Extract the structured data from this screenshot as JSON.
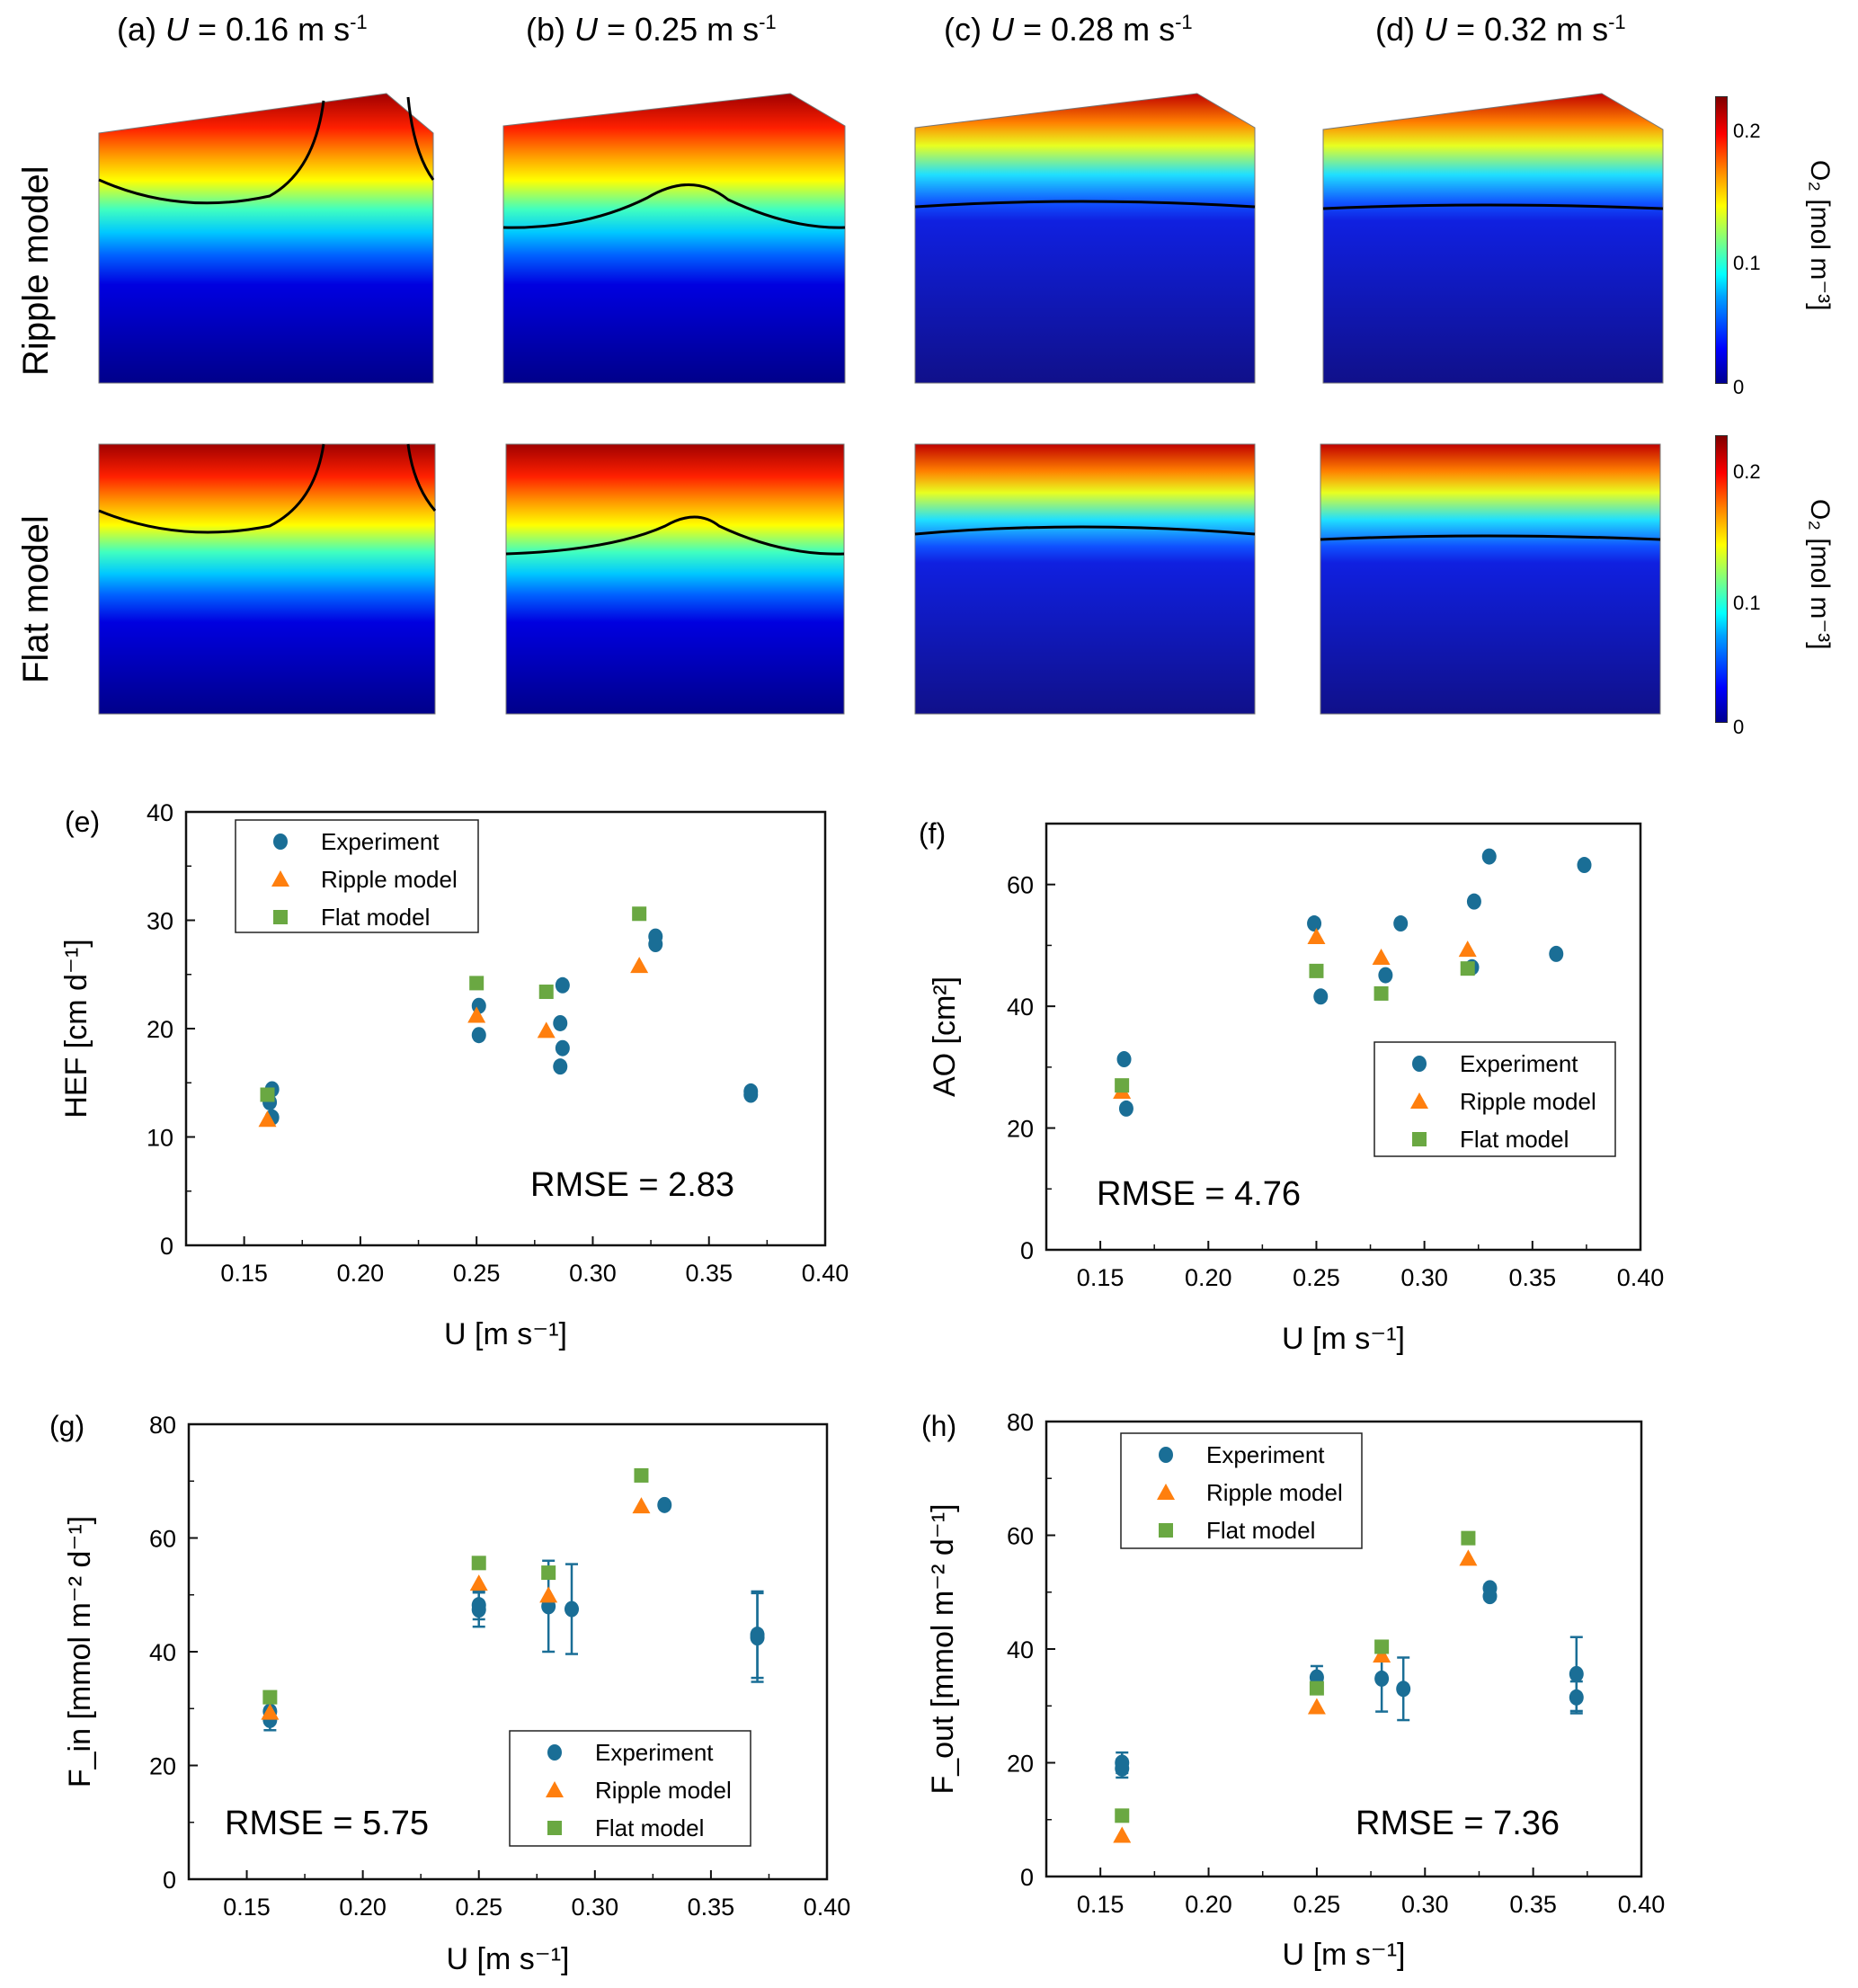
{
  "fields": {
    "column_titles": [
      {
        "prefix": "(a) ",
        "var": "U",
        "rest": " = 0.16 m s",
        "sup": "-1"
      },
      {
        "prefix": "(b) ",
        "var": "U",
        "rest": " = 0.25 m s",
        "sup": "-1"
      },
      {
        "prefix": "(c) ",
        "var": "U",
        "rest": " = 0.28 m s",
        "sup": "-1"
      },
      {
        "prefix": "(d) ",
        "var": "U",
        "rest": " = 0.32 m s",
        "sup": "-1"
      }
    ],
    "row_labels": [
      "Ripple model",
      "Flat model"
    ],
    "colorbar": {
      "label": "O₂ [mol m⁻³]",
      "ticks": [
        "0.2",
        "0.1",
        "0"
      ],
      "range": [
        0,
        0.22
      ],
      "colormap": "jet"
    }
  },
  "chart_data": [
    {
      "panel": "(e)",
      "type": "scatter",
      "xlabel": "U [m s⁻¹]",
      "ylabel": "HEF [cm d⁻¹]",
      "xlim": [
        0.125,
        0.4
      ],
      "ylim": [
        0,
        40
      ],
      "xticks": [
        "0.15",
        "0.20",
        "0.25",
        "0.30",
        "0.35",
        "0.40"
      ],
      "yticks": [
        "0",
        "10",
        "20",
        "30",
        "40"
      ],
      "annotation": "RMSE = 2.83",
      "legend_position": "top-left",
      "series": [
        {
          "name": "Experiment",
          "marker": "circle",
          "color": "#1a6e96",
          "points": [
            [
              0.162,
              14.4
            ],
            [
              0.161,
              13.2
            ],
            [
              0.162,
              11.8
            ],
            [
              0.251,
              22.1
            ],
            [
              0.251,
              19.4
            ],
            [
              0.287,
              24.0
            ],
            [
              0.286,
              20.5
            ],
            [
              0.287,
              18.2
            ],
            [
              0.286,
              16.5
            ],
            [
              0.327,
              28.5
            ],
            [
              0.327,
              27.8
            ],
            [
              0.368,
              14.2
            ],
            [
              0.368,
              13.9
            ]
          ]
        },
        {
          "name": "Ripple model",
          "marker": "triangle",
          "color": "#ff7f0e",
          "points": [
            [
              0.16,
              11.6
            ],
            [
              0.25,
              21.2
            ],
            [
              0.28,
              19.8
            ],
            [
              0.32,
              25.8
            ]
          ]
        },
        {
          "name": "Flat model",
          "marker": "square",
          "color": "#6aa842",
          "points": [
            [
              0.16,
              13.9
            ],
            [
              0.25,
              24.2
            ],
            [
              0.28,
              23.4
            ],
            [
              0.32,
              30.6
            ]
          ]
        }
      ]
    },
    {
      "panel": "(f)",
      "type": "scatter",
      "xlabel": "U [m s⁻¹]",
      "ylabel": "AO [cm²]",
      "xlim": [
        0.125,
        0.4
      ],
      "ylim": [
        0,
        70
      ],
      "xticks": [
        "0.15",
        "0.20",
        "0.25",
        "0.30",
        "0.35",
        "0.40"
      ],
      "yticks": [
        "0",
        "20",
        "40",
        "60"
      ],
      "annotation": "RMSE = 4.76",
      "legend_position": "bottom-right",
      "series": [
        {
          "name": "Experiment",
          "marker": "circle",
          "color": "#1a6e96",
          "points": [
            [
              0.161,
              31.3
            ],
            [
              0.162,
              23.2
            ],
            [
              0.249,
              53.6
            ],
            [
              0.252,
              41.6
            ],
            [
              0.282,
              45.1
            ],
            [
              0.289,
              53.6
            ],
            [
              0.322,
              46.4
            ],
            [
              0.323,
              57.2
            ],
            [
              0.33,
              64.6
            ],
            [
              0.361,
              48.6
            ],
            [
              0.374,
              63.2
            ]
          ]
        },
        {
          "name": "Ripple model",
          "marker": "triangle",
          "color": "#ff7f0e",
          "points": [
            [
              0.16,
              26.0
            ],
            [
              0.25,
              51.4
            ],
            [
              0.28,
              48.0
            ],
            [
              0.32,
              49.3
            ]
          ]
        },
        {
          "name": "Flat model",
          "marker": "square",
          "color": "#6aa842",
          "points": [
            [
              0.16,
              27.0
            ],
            [
              0.25,
              45.8
            ],
            [
              0.28,
              42.1
            ],
            [
              0.32,
              46.2
            ]
          ]
        }
      ]
    },
    {
      "panel": "(g)",
      "type": "scatter",
      "xlabel": "U [m s⁻¹]",
      "ylabel": "F_in [mmol m⁻² d⁻¹]",
      "xlim": [
        0.125,
        0.4
      ],
      "ylim": [
        0,
        80
      ],
      "xticks": [
        "0.15",
        "0.20",
        "0.25",
        "0.30",
        "0.35",
        "0.40"
      ],
      "yticks": [
        "0",
        "20",
        "40",
        "60",
        "80"
      ],
      "annotation": "RMSE = 5.75",
      "legend_position": "bottom-right",
      "series": [
        {
          "name": "Experiment",
          "marker": "circle",
          "color": "#1a6e96",
          "points": [
            [
              0.16,
              29.5
            ],
            [
              0.16,
              28.0
            ],
            [
              0.25,
              48.2
            ],
            [
              0.25,
              47.4
            ],
            [
              0.28,
              48.0
            ],
            [
              0.29,
              47.5
            ],
            [
              0.33,
              65.8
            ],
            [
              0.37,
              43.0
            ],
            [
              0.37,
              42.5
            ]
          ],
          "error": [
            [
              2.0
            ],
            [
              1.8
            ],
            [
              2.5
            ],
            [
              3.0
            ],
            [
              8.0
            ],
            [
              7.9
            ],
            [
              0.5
            ],
            [
              7.6
            ],
            [
              7.8
            ]
          ]
        },
        {
          "name": "Ripple model",
          "marker": "triangle",
          "color": "#ff7f0e",
          "points": [
            [
              0.16,
              29.3
            ],
            [
              0.25,
              52.0
            ],
            [
              0.28,
              49.9
            ],
            [
              0.32,
              65.6
            ]
          ]
        },
        {
          "name": "Flat model",
          "marker": "square",
          "color": "#6aa842",
          "points": [
            [
              0.16,
              32.0
            ],
            [
              0.25,
              55.6
            ],
            [
              0.28,
              53.9
            ],
            [
              0.32,
              71.0
            ]
          ]
        }
      ]
    },
    {
      "panel": "(h)",
      "type": "scatter",
      "xlabel": "U [m s⁻¹]",
      "ylabel": "F_out [mmol m⁻² d⁻¹]",
      "xlim": [
        0.125,
        0.4
      ],
      "ylim": [
        0,
        80
      ],
      "xticks": [
        "0.15",
        "0.20",
        "0.25",
        "0.30",
        "0.35",
        "0.40"
      ],
      "yticks": [
        "0",
        "20",
        "40",
        "60",
        "80"
      ],
      "annotation": "RMSE = 7.36",
      "legend_position": "top-left",
      "series": [
        {
          "name": "Experiment",
          "marker": "circle",
          "color": "#1a6e96",
          "points": [
            [
              0.16,
              20.0
            ],
            [
              0.16,
              19.0
            ],
            [
              0.25,
              35.0
            ],
            [
              0.28,
              34.8
            ],
            [
              0.29,
              33.0
            ],
            [
              0.33,
              50.7
            ],
            [
              0.33,
              49.3
            ],
            [
              0.37,
              35.6
            ],
            [
              0.37,
              31.5
            ]
          ],
          "error": [
            [
              1.8
            ],
            [
              1.6
            ],
            [
              2.0
            ],
            [
              5.8
            ],
            [
              5.5
            ],
            [
              0.6
            ],
            [
              0.6
            ],
            [
              6.5
            ],
            [
              2.8
            ]
          ]
        },
        {
          "name": "Ripple model",
          "marker": "triangle",
          "color": "#ff7f0e",
          "points": [
            [
              0.16,
              7.2
            ],
            [
              0.25,
              29.8
            ],
            [
              0.28,
              38.9
            ],
            [
              0.32,
              55.9
            ]
          ]
        },
        {
          "name": "Flat model",
          "marker": "square",
          "color": "#6aa842",
          "points": [
            [
              0.16,
              10.7
            ],
            [
              0.25,
              33.1
            ],
            [
              0.28,
              40.4
            ],
            [
              0.32,
              59.5
            ]
          ]
        }
      ]
    }
  ]
}
